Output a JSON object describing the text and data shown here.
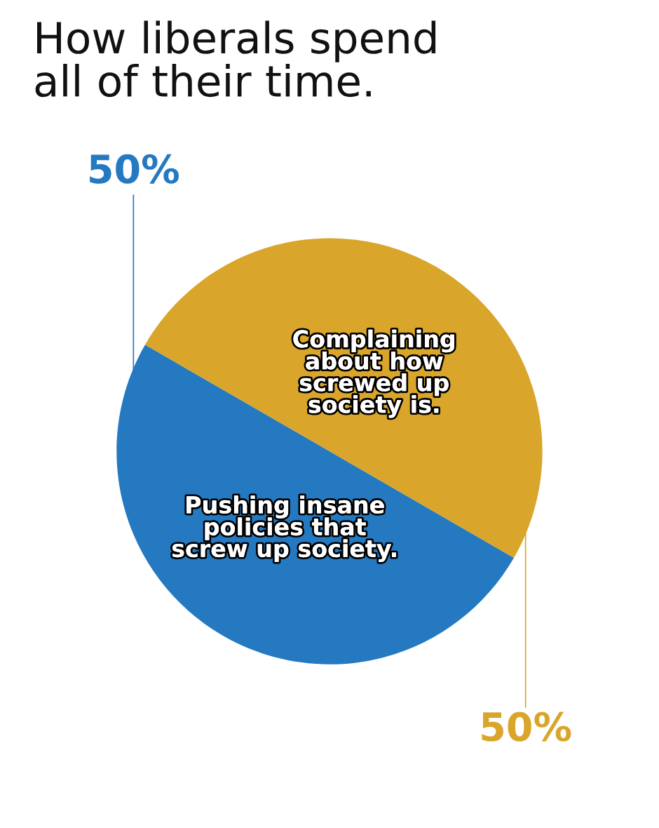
{
  "chart_data": {
    "type": "pie",
    "title": "How liberals spend\nall of their time.",
    "categories": [
      "Pushing insane\npolicies that\nscrew up society.",
      "Complaining\nabout how\nscrewed up\nsociety is."
    ],
    "values": [
      50,
      50
    ],
    "colors": [
      "#2479c1",
      "#d9a52a"
    ],
    "value_labels": [
      "50%",
      "50%"
    ]
  }
}
